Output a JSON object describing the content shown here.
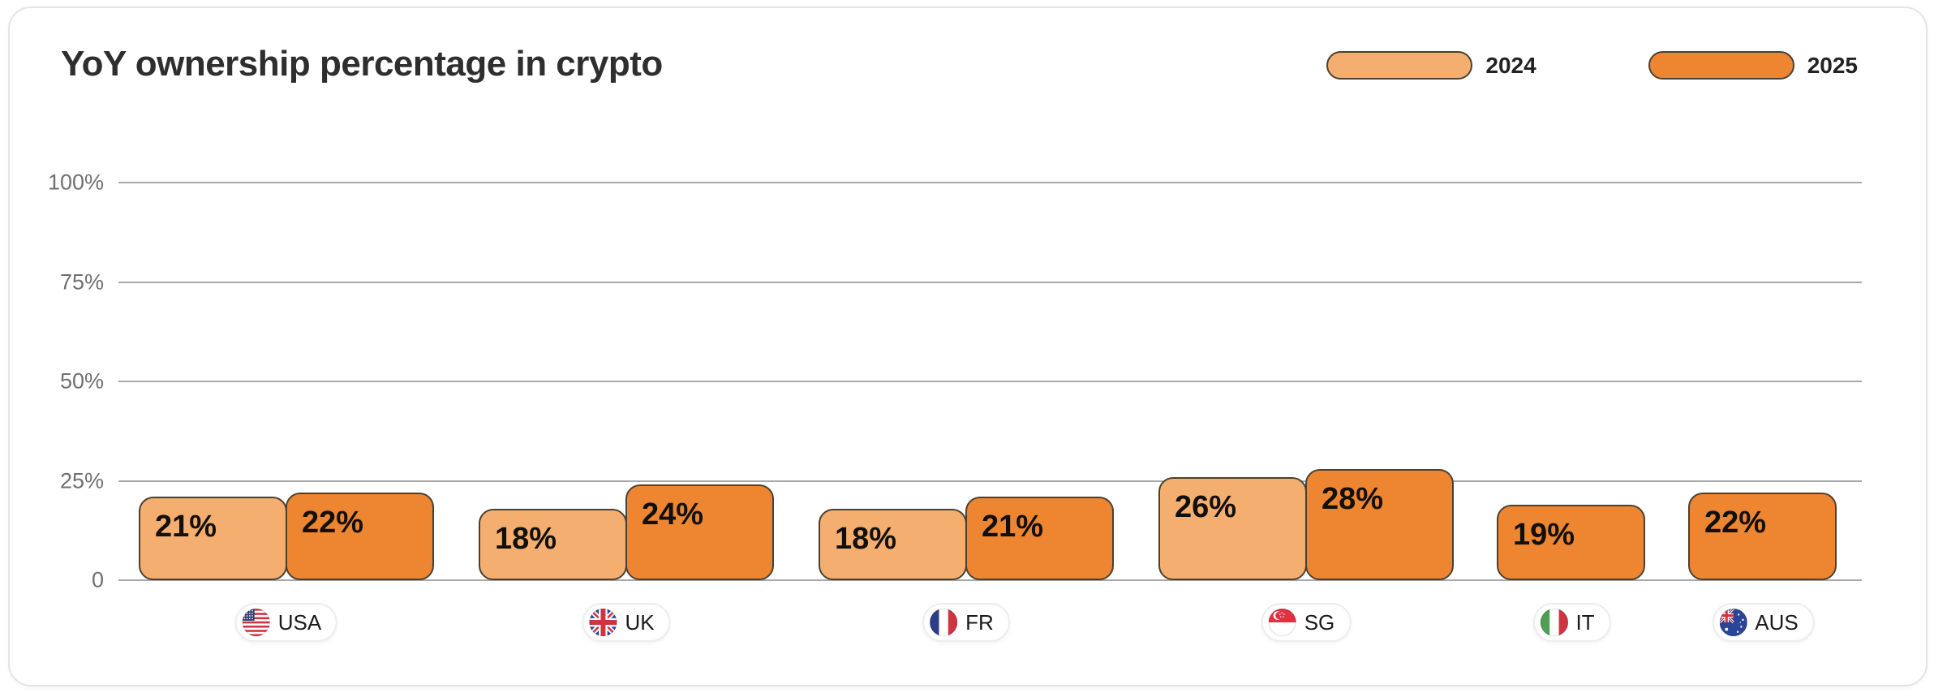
{
  "header": {
    "title": "YoY ownership percentage in crypto"
  },
  "legend": {
    "items": [
      {
        "label": "2024",
        "color": "#f4ae6f"
      },
      {
        "label": "2025",
        "color": "#ed8531"
      }
    ]
  },
  "chart_data": {
    "type": "bar",
    "title": "YoY ownership percentage in crypto",
    "categories": [
      "USA",
      "UK",
      "FR",
      "SG",
      "IT",
      "AUS"
    ],
    "category_flag_icons": [
      "usa-flag-icon",
      "uk-flag-icon",
      "fr-flag-icon",
      "sg-flag-icon",
      "it-flag-icon",
      "aus-flag-icon"
    ],
    "series": [
      {
        "name": "2024",
        "color": "#f4ae6f",
        "values": [
          21,
          18,
          18,
          26,
          null,
          null
        ],
        "labels": [
          "21%",
          "18%",
          "18%",
          "26%",
          null,
          null
        ]
      },
      {
        "name": "2025",
        "color": "#ed8531",
        "values": [
          22,
          24,
          21,
          28,
          19,
          22
        ],
        "labels": [
          "22%",
          "24%",
          "21%",
          "28%",
          "19%",
          "22%"
        ]
      }
    ],
    "value_suffix": "%",
    "y_axis": {
      "min": 0,
      "max": 100,
      "ticks": [
        {
          "label": "100%",
          "value": 100
        },
        {
          "label": "75%",
          "value": 75
        },
        {
          "label": "50%",
          "value": 50
        },
        {
          "label": "25%",
          "value": 25
        },
        {
          "label": "0",
          "value": 0
        }
      ]
    },
    "grid": true,
    "legend_position": "top-right",
    "bar_border_color": "#4a4132",
    "gridline_color": "#a8a8a8"
  }
}
